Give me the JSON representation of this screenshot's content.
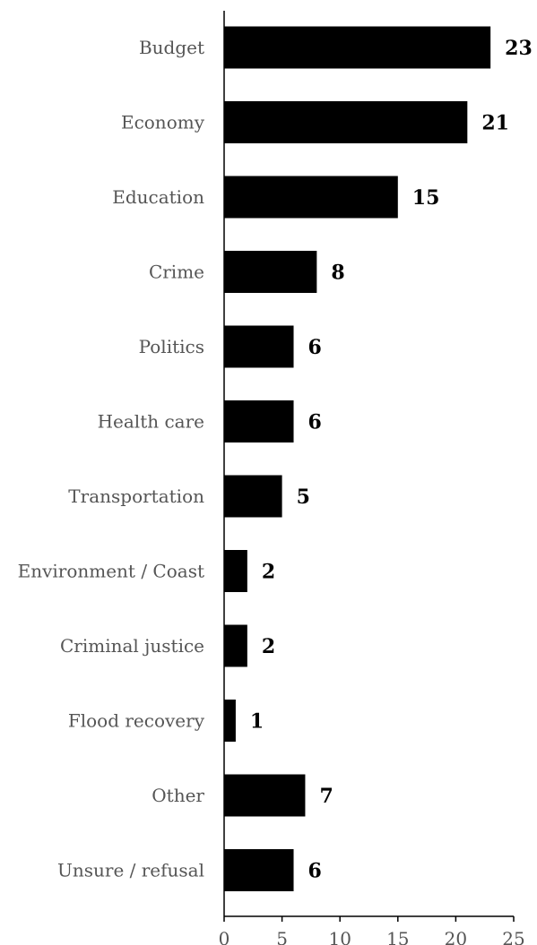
{
  "chart_data": {
    "type": "bar",
    "orientation": "horizontal",
    "categories": [
      "Budget",
      "Economy",
      "Education",
      "Crime",
      "Politics",
      "Health care",
      "Transportation",
      "Environment / Coast",
      "Criminal justice",
      "Flood recovery",
      "Other",
      "Unsure / refusal"
    ],
    "values": [
      23,
      21,
      15,
      8,
      6,
      6,
      5,
      2,
      2,
      1,
      7,
      6
    ],
    "data_labels": [
      "23",
      "21",
      "15",
      "8",
      "6",
      "6",
      "5",
      "2",
      "2",
      "1",
      "7",
      "6"
    ],
    "xlim": [
      0,
      25
    ],
    "xticks": [
      0,
      5,
      10,
      15,
      20,
      25
    ],
    "xtick_labels": [
      "0",
      "5",
      "10",
      "15",
      "20",
      "25"
    ],
    "grid": false,
    "legend": "none",
    "bar_color": "#000000",
    "axis_color": "#000000",
    "label_color": "#555555"
  }
}
